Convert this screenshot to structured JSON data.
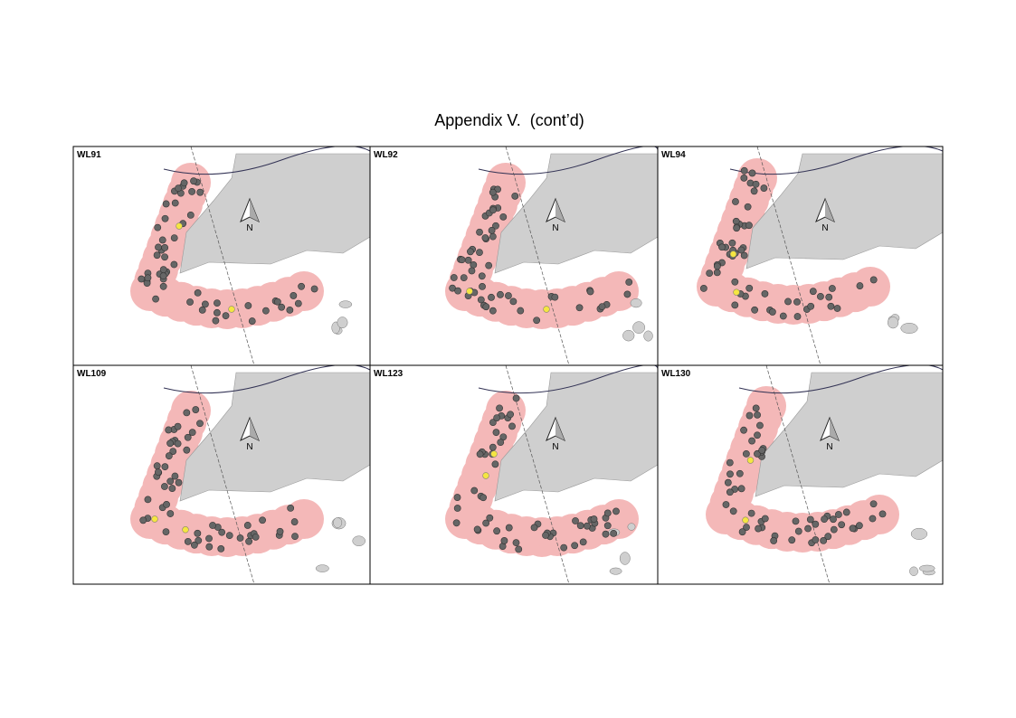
{
  "title": "Appendix V.  (cont’d)",
  "panels": [
    {
      "label": "WL91",
      "north": "N"
    },
    {
      "label": "WL92",
      "north": "N"
    },
    {
      "label": "WL94",
      "north": "N"
    },
    {
      "label": "WL109",
      "north": "N"
    },
    {
      "label": "WL123",
      "north": "N"
    },
    {
      "label": "WL130",
      "north": "N"
    }
  ]
}
